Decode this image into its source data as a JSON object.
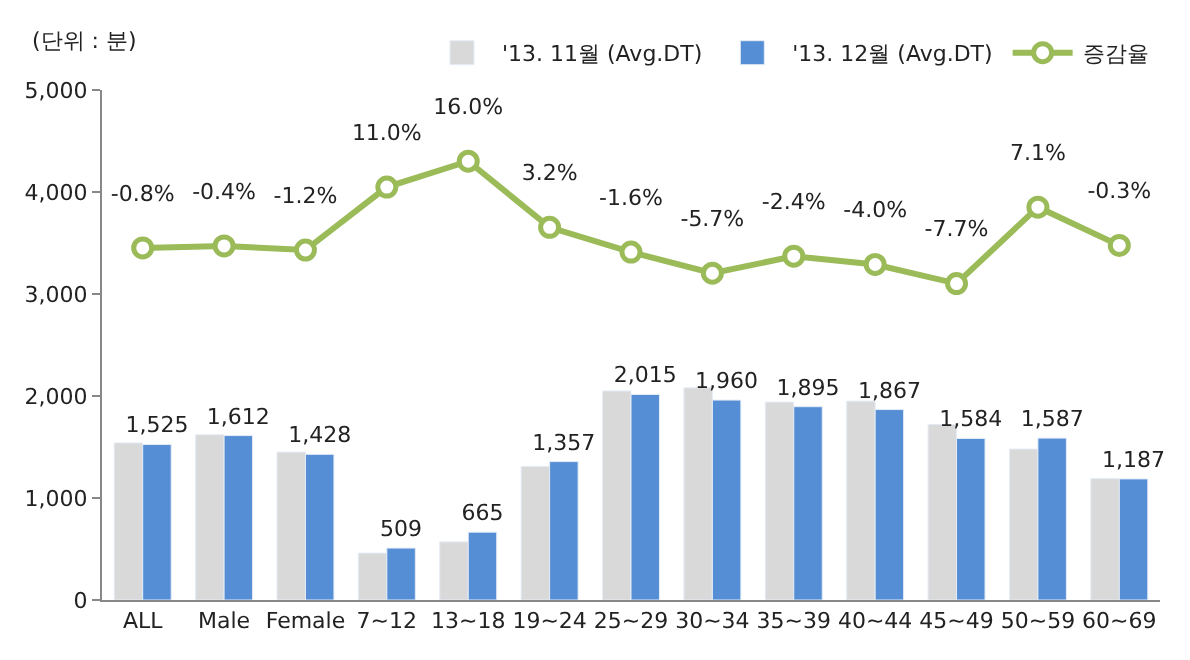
{
  "chart_data": {
    "type": "bar",
    "categories": [
      "ALL",
      "Male",
      "Female",
      "7~12",
      "13~18",
      "19~24",
      "25~29",
      "30~34",
      "35~39",
      "40~44",
      "45~49",
      "50~59",
      "60~69"
    ],
    "series": [
      {
        "name": "'13. 11월 (Avg.DT)",
        "color": "#d9d9d9",
        "values": [
          1540,
          1620,
          1450,
          460,
          570,
          1310,
          2050,
          2080,
          1940,
          1950,
          1720,
          1480,
          1190
        ]
      },
      {
        "name": "'13. 12월 (Avg.DT)",
        "color": "#558ed5",
        "values": [
          1525,
          1612,
          1428,
          509,
          665,
          1357,
          2015,
          1960,
          1895,
          1867,
          1584,
          1587,
          1187
        ],
        "value_labels": [
          "1,525",
          "1,612",
          "1,428",
          "509",
          "665",
          "1,357",
          "2,015",
          "1,960",
          "1,895",
          "1,867",
          "1,584",
          "1,587",
          "1,187"
        ]
      },
      {
        "name": "증감율",
        "color": "#9bbb59",
        "type": "line",
        "axis": "y2",
        "values": [
          -0.8,
          -0.4,
          -1.2,
          11.0,
          16.0,
          3.2,
          -1.6,
          -5.7,
          -2.4,
          -4.0,
          -7.7,
          7.1,
          -0.3
        ],
        "value_labels": [
          "-0.8%",
          "-0.4%",
          "-1.2%",
          "11.0%",
          "16.0%",
          "3.2%",
          "-1.6%",
          "-5.7%",
          "-2.4%",
          "-4.0%",
          "-7.7%",
          "7.1%",
          "-0.3%"
        ]
      }
    ],
    "ylim": [
      0,
      5000
    ],
    "yticks": [
      0,
      {
        "value": 1000,
        "label": "1,000"
      },
      {
        "value": 2000,
        "label": "2,000"
      },
      {
        "value": 3000,
        "label": "3,000"
      },
      {
        "value": 4000,
        "label": "4,000"
      },
      {
        "value": 5000,
        "label": "5,000"
      }
    ],
    "y2lim": [
      -69,
      29.8
    ],
    "annotations": [
      "(단위 : 분)"
    ],
    "legend": "top right",
    "marker": "circle",
    "line_style": "solid"
  }
}
